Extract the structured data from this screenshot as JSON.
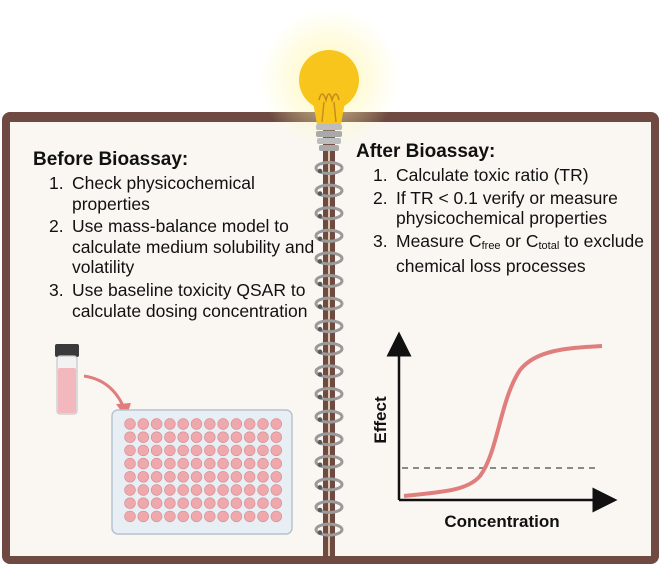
{
  "before": {
    "heading": "Before Bioassay:",
    "steps": [
      {
        "num": "1.",
        "text": "Check physicochemical properties"
      },
      {
        "num": "2.",
        "text": "Use mass-balance model to calculate medium solubility and volatility"
      },
      {
        "num": "3.",
        "text": "Use baseline toxicity QSAR to calculate dosing concentration"
      }
    ]
  },
  "after": {
    "heading": "After Bioassay:",
    "steps": [
      {
        "num": "1.",
        "text": "Calculate toxic ratio (TR)"
      },
      {
        "num": "2.",
        "text": "If TR < 0.1 verify or measure physicochemical properties"
      },
      {
        "num": "3.",
        "text_a": "Measure C",
        "sub_a": "free",
        "text_b": " or C",
        "sub_b": "total",
        "text_c": " to exclude chemical loss processes"
      }
    ]
  },
  "chart": {
    "ylabel": "Effect",
    "xlabel": "Concentration",
    "curve_color": "#e07d7d",
    "threshold_color": "#8a8a8a"
  },
  "colors": {
    "cover": "#6e4a42",
    "page": "#faf7f2",
    "ring": "#9a9a9a",
    "bulb": "#f7c51b",
    "well": "#efa9ad",
    "vial_liquid": "#f2b8bd"
  },
  "icons": [
    "lightbulb-icon",
    "vial-icon",
    "well-plate-icon",
    "spiral-ring-icon",
    "arrow-icon"
  ]
}
